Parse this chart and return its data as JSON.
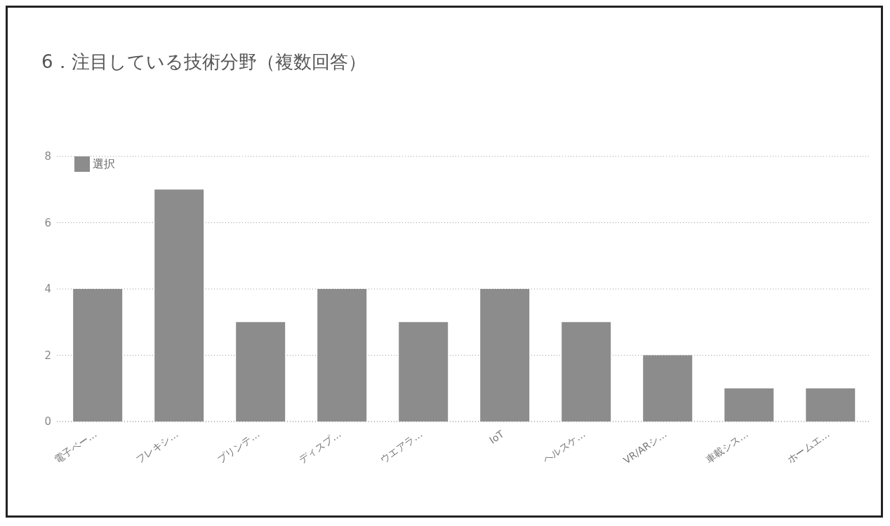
{
  "chart_data": {
    "type": "bar",
    "title": "6．注目している技術分野（複数回答）",
    "categories": [
      "電子ペー…",
      "フレキシ…",
      "プリンテ…",
      "ディスプ…",
      "ウエアラ…",
      "IoT",
      "ヘルスケ…",
      "VR/ARシ…",
      "車載シス…",
      "ホームエ…"
    ],
    "series": [
      {
        "name": "選択",
        "color": "#8c8c8c",
        "values": [
          4,
          7,
          3,
          4,
          3,
          4,
          3,
          2,
          1,
          1
        ]
      }
    ],
    "ylim": [
      0,
      8
    ],
    "yticks": [
      0,
      2,
      4,
      6,
      8
    ],
    "grid": "y",
    "line_style": "dotted",
    "legend": "top left"
  }
}
